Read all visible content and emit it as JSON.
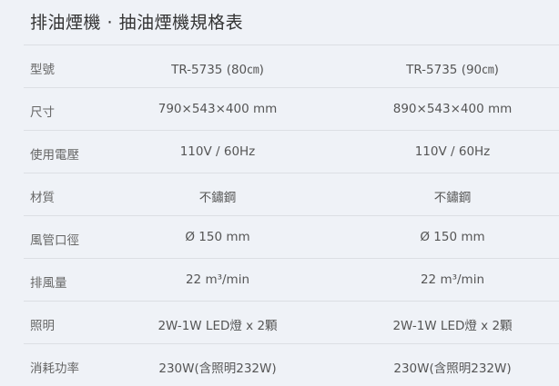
{
  "title": "排油煙機 · 抽油煙機規格表",
  "rows": [
    {
      "label": "型號",
      "v1": "TR-5735 (80㎝)",
      "v2": "TR-5735 (90㎝)"
    },
    {
      "label": "尺寸",
      "v1": "790×543×400 mm",
      "v2": "890×543×400 mm"
    },
    {
      "label": "使用電壓",
      "v1": "110V / 60Hz",
      "v2": "110V / 60Hz"
    },
    {
      "label": "材質",
      "v1": "不鏽鋼",
      "v2": "不鏽鋼"
    },
    {
      "label": "風管口徑",
      "v1": "Ø 150 mm",
      "v2": "Ø 150 mm"
    },
    {
      "label": "排風量",
      "v1": "22 m³/min",
      "v2": "22 m³/min"
    },
    {
      "label": "照明",
      "v1": "2W-1W LED燈 x 2顆",
      "v2": "2W-1W LED燈 x 2顆"
    },
    {
      "label": "消耗功率",
      "v1": "230W(含照明232W)",
      "v2": "230W(含照明232W)"
    }
  ]
}
